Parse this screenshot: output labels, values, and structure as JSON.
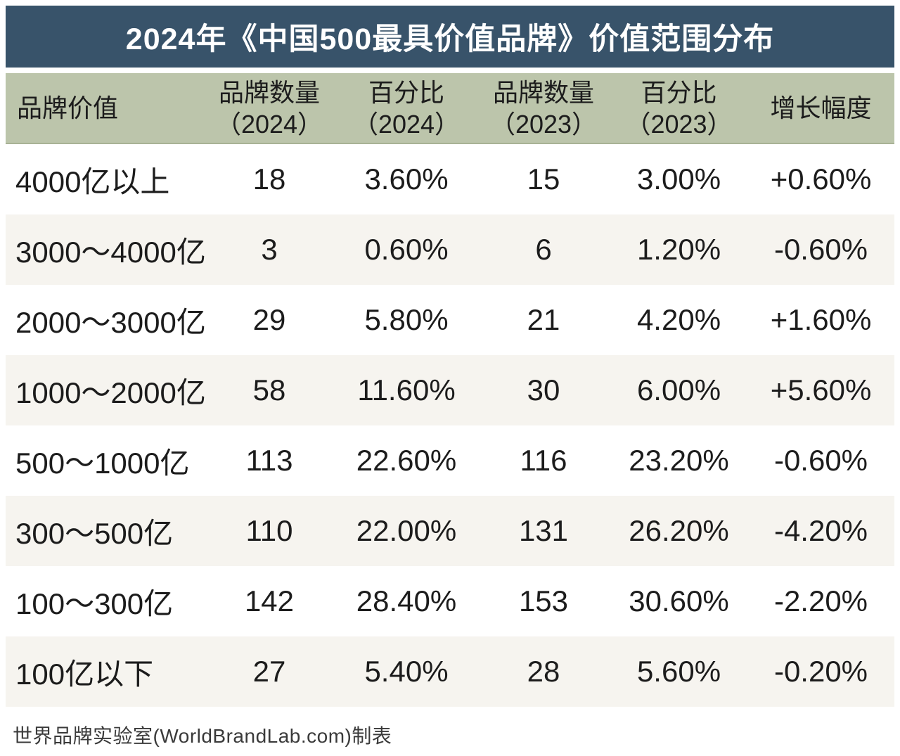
{
  "title": "2024年《中国500最具价值品牌》价值范围分布",
  "colors": {
    "title_bar_bg": "#38536a",
    "title_text": "#ffffff",
    "header_bg": "#bcc5ab",
    "header_border": "#a8b295",
    "row_odd_bg": "#ffffff",
    "row_even_bg": "#f6f4ef",
    "text": "#1c1c1c"
  },
  "header": {
    "cells": [
      {
        "label": "品牌价值",
        "sub": ""
      },
      {
        "label": "品牌数量",
        "sub": "（2024）"
      },
      {
        "label": "百分比",
        "sub": "（2024）"
      },
      {
        "label": "品牌数量",
        "sub": "（2023）"
      },
      {
        "label": "百分比",
        "sub": "（2023）"
      },
      {
        "label": "增长幅度",
        "sub": ""
      }
    ]
  },
  "chart_data": {
    "type": "table",
    "title": "2024年《中国500最具价值品牌》价值范围分布",
    "columns": [
      "品牌价值",
      "品牌数量（2024）",
      "百分比（2024）",
      "品牌数量（2023）",
      "百分比（2023）",
      "增长幅度"
    ],
    "rows": [
      [
        "4000亿以上",
        "18",
        "3.60%",
        "15",
        "3.00%",
        "+0.60%"
      ],
      [
        "3000～4000亿",
        "3",
        "0.60%",
        "6",
        "1.20%",
        "-0.60%"
      ],
      [
        "2000～3000亿",
        "29",
        "5.80%",
        "21",
        "4.20%",
        "+1.60%"
      ],
      [
        "1000～2000亿",
        "58",
        "11.60%",
        "30",
        "6.00%",
        "+5.60%"
      ],
      [
        "500～1000亿",
        "113",
        "22.60%",
        "116",
        "23.20%",
        "-0.60%"
      ],
      [
        "300～500亿",
        "110",
        "22.00%",
        "131",
        "26.20%",
        "-4.20%"
      ],
      [
        "100～300亿",
        "142",
        "28.40%",
        "153",
        "30.60%",
        "-2.20%"
      ],
      [
        "100亿以下",
        "27",
        "5.40%",
        "28",
        "5.60%",
        "-0.20%"
      ]
    ]
  },
  "footer": {
    "credit": "世界品牌实验室(WorldBrandLab.com)制表"
  }
}
